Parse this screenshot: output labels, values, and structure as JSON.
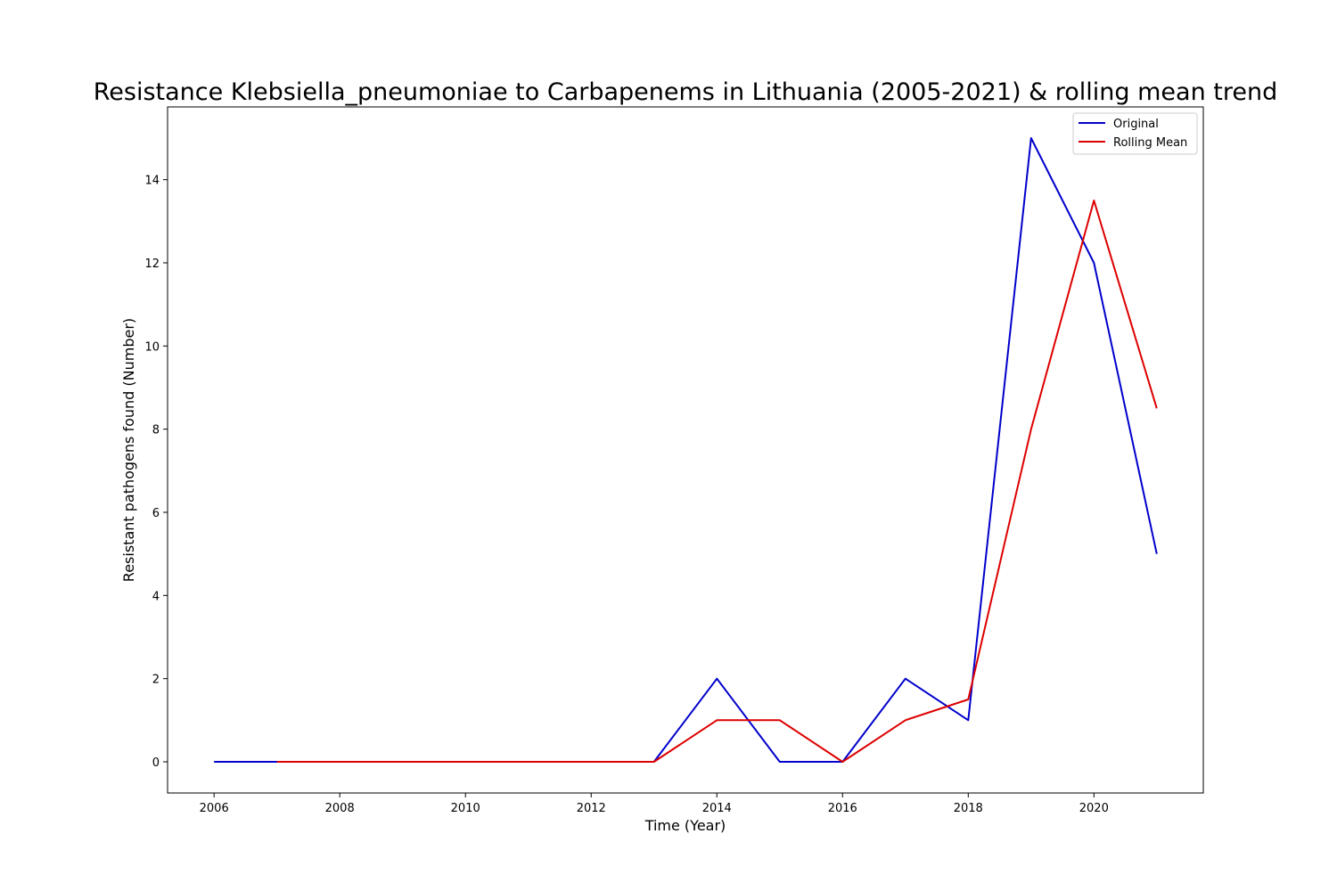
{
  "chart_data": {
    "type": "line",
    "title": "Resistance Klebsiella_pneumoniae to Carbapenems in Lithuania (2005-2021) & rolling mean trend",
    "xlabel": "Time (Year)",
    "ylabel": "Resistant pathogens found (Number)",
    "xlim": [
      2005.26,
      2021.74
    ],
    "ylim": [
      -0.75,
      15.75
    ],
    "xticks": [
      2006,
      2008,
      2010,
      2012,
      2014,
      2016,
      2018,
      2020
    ],
    "yticks": [
      0,
      2,
      4,
      6,
      8,
      10,
      12,
      14
    ],
    "grid": false,
    "legend_position": "top-right",
    "series": [
      {
        "name": "Original",
        "color": "#0000cc",
        "x": [
          2006,
          2007,
          2008,
          2009,
          2010,
          2011,
          2012,
          2013,
          2014,
          2015,
          2016,
          2017,
          2018,
          2019,
          2020,
          2021
        ],
        "values": [
          0,
          0,
          0,
          0,
          0,
          0,
          0,
          0,
          2,
          0,
          0,
          2,
          1,
          15,
          12,
          5
        ]
      },
      {
        "name": "Rolling Mean",
        "color": "#dd0000",
        "x": [
          2007,
          2008,
          2009,
          2010,
          2011,
          2012,
          2013,
          2014,
          2015,
          2016,
          2017,
          2018,
          2019,
          2020,
          2021
        ],
        "values": [
          0,
          0,
          0,
          0,
          0,
          0,
          0,
          1,
          1,
          0,
          1,
          1.5,
          8,
          13.5,
          8.5
        ]
      }
    ]
  }
}
